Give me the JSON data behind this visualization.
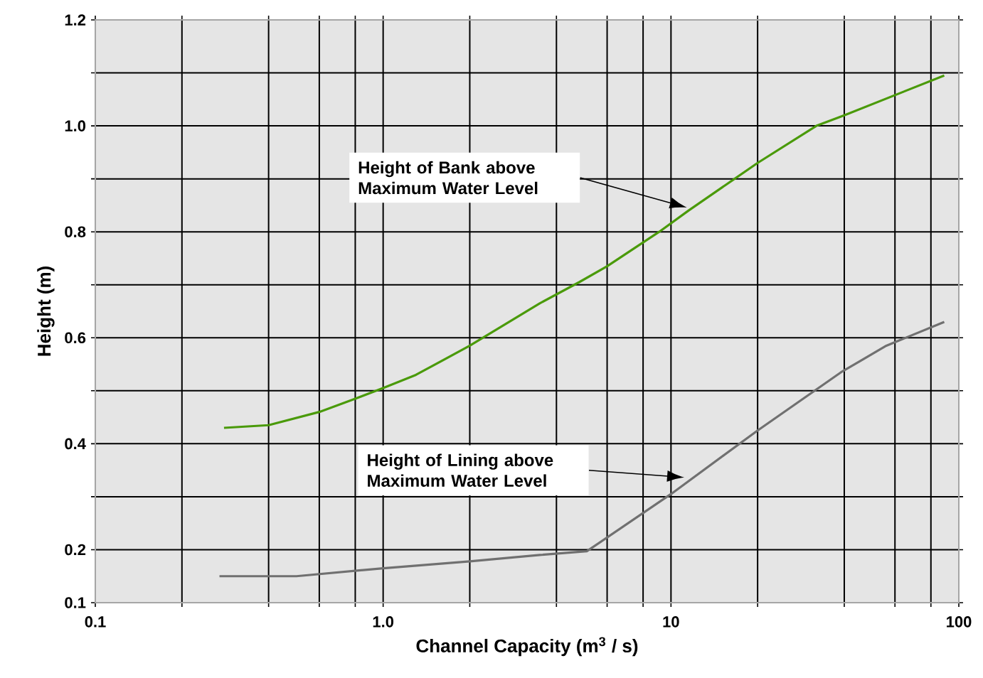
{
  "chart_data": {
    "type": "line",
    "xlabel": "Channel Capacity (m$^{3}$ / s)",
    "ylabel": "Height (m)",
    "log": "x",
    "grid": true,
    "xlim": [
      0.1,
      100
    ],
    "ylim": [
      0.1,
      1.2
    ],
    "xticks": [
      0.1,
      {
        "value": 0.2,
        "label": null
      },
      {
        "value": 0.4,
        "label": null
      },
      {
        "value": 0.6,
        "label": null
      },
      {
        "value": 0.8,
        "label": null
      },
      {
        "value": 1,
        "label": "1.0"
      },
      {
        "value": 2,
        "label": null
      },
      {
        "value": 4,
        "label": null
      },
      {
        "value": 6,
        "label": null
      },
      {
        "value": 8,
        "label": null
      },
      10,
      {
        "value": 20,
        "label": null
      },
      {
        "value": 40,
        "label": null
      },
      {
        "value": 60,
        "label": null
      },
      {
        "value": 80,
        "label": null
      },
      100
    ],
    "yticks": [
      0.1,
      0.2,
      {
        "value": 0.3,
        "label": null
      },
      0.4,
      {
        "value": 0.5,
        "label": null
      },
      0.6,
      {
        "value": 0.7,
        "label": null
      },
      0.8,
      {
        "value": 0.9,
        "label": null
      },
      {
        "value": 1,
        "label": "1.0"
      },
      {
        "value": 1.1,
        "label": null
      },
      1.2
    ],
    "series": [
      {
        "color": "#4a9a0a",
        "x": [
          0.28,
          0.4,
          0.6,
          0.8,
          1.0,
          1.3,
          2.0,
          3.5,
          4.8,
          6.0,
          9.1,
          11.5,
          20,
          32,
          40,
          89
        ],
        "values": [
          0.43,
          0.435,
          0.46,
          0.485,
          0.505,
          0.53,
          0.585,
          0.665,
          0.705,
          0.735,
          0.8,
          0.84,
          0.93,
          1.0,
          1.02,
          1.095
        ]
      },
      {
        "color": "#707070",
        "x": [
          0.27,
          0.5,
          1.0,
          2.0,
          3.5,
          5.1,
          10,
          20,
          39,
          56,
          89
        ],
        "values": [
          0.15,
          0.15,
          0.165,
          0.178,
          0.19,
          0.197,
          0.305,
          0.425,
          0.535,
          0.585,
          0.63
        ]
      }
    ],
    "annotations": [
      "Height of Bank above Maximum Water Level",
      "Height of Lining above Maximum Water Level"
    ]
  }
}
